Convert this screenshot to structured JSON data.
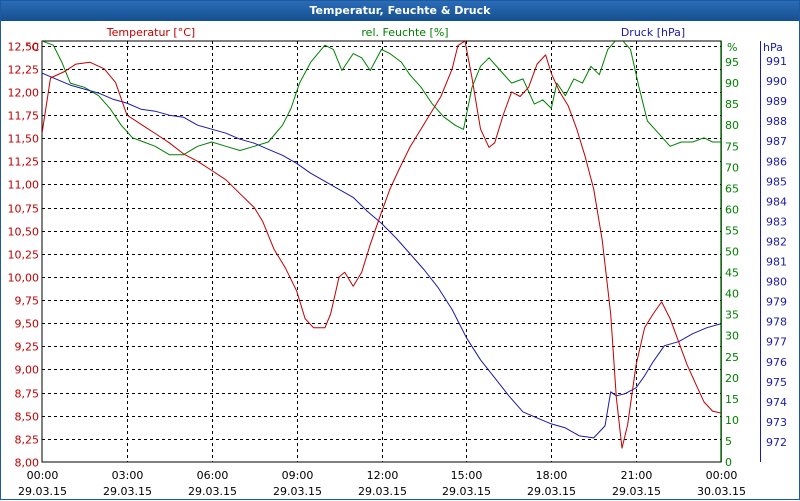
{
  "window": {
    "title": "Temperatur, Feuchte & Druck"
  },
  "chart_data": {
    "type": "line",
    "title": "Temperatur, Feuchte & Druck",
    "x_labels": [
      {
        "time": "00:00",
        "date": "29.03.15"
      },
      {
        "time": "03:00",
        "date": "29.03.15"
      },
      {
        "time": "06:00",
        "date": "29.03.15"
      },
      {
        "time": "09:00",
        "date": "29.03.15"
      },
      {
        "time": "12:00",
        "date": "29.03.15"
      },
      {
        "time": "15:00",
        "date": "29.03.15"
      },
      {
        "time": "18:00",
        "date": "29.03.15"
      },
      {
        "time": "21:00",
        "date": "29.03.15"
      },
      {
        "time": "00:00",
        "date": "30.03.15"
      }
    ],
    "xlim_hours": [
      0,
      24
    ],
    "axes": {
      "temperature": {
        "label": "Temperatur [°C]",
        "unit": "°C",
        "min": 8.0,
        "max": 12.5,
        "step": 0.25,
        "color": "#c00000",
        "ticks": [
          "8,00",
          "8,25",
          "8,50",
          "8,75",
          "9,00",
          "9,25",
          "9,50",
          "9,75",
          "10,00",
          "10,25",
          "10,50",
          "10,75",
          "11,00",
          "11,25",
          "11,50",
          "11,75",
          "12,00",
          "12,25",
          "12,50"
        ]
      },
      "humidity": {
        "label": "rel. Feuchte [%]",
        "unit": "%",
        "min": 0,
        "max": 95,
        "step": 5,
        "color": "#008000",
        "ticks": [
          "0",
          "5",
          "10",
          "15",
          "20",
          "25",
          "30",
          "35",
          "40",
          "45",
          "50",
          "55",
          "60",
          "65",
          "70",
          "75",
          "80",
          "85",
          "90",
          "95"
        ]
      },
      "pressure": {
        "label": "Druck [hPa]",
        "unit": "hPa",
        "min": 971,
        "max": 991,
        "step": 1,
        "color": "#1a1aa6",
        "ticks": [
          "972",
          "973",
          "974",
          "975",
          "976",
          "977",
          "978",
          "979",
          "980",
          "981",
          "982",
          "983",
          "984",
          "985",
          "986",
          "987",
          "988",
          "989",
          "990",
          "991"
        ]
      }
    },
    "series": [
      {
        "name": "Temperatur [°C]",
        "axis": "temperature",
        "color": "#c00000",
        "points": [
          [
            0,
            11.55
          ],
          [
            0.3,
            12.15
          ],
          [
            0.8,
            12.22
          ],
          [
            1.2,
            12.3
          ],
          [
            1.7,
            12.32
          ],
          [
            2.2,
            12.25
          ],
          [
            2.6,
            12.1
          ],
          [
            3,
            11.75
          ],
          [
            3.5,
            11.65
          ],
          [
            4,
            11.55
          ],
          [
            4.5,
            11.45
          ],
          [
            5,
            11.33
          ],
          [
            5.5,
            11.25
          ],
          [
            6,
            11.15
          ],
          [
            6.5,
            11.05
          ],
          [
            7,
            10.9
          ],
          [
            7.5,
            10.75
          ],
          [
            7.8,
            10.6
          ],
          [
            8.2,
            10.3
          ],
          [
            8.6,
            10.1
          ],
          [
            9,
            9.85
          ],
          [
            9.3,
            9.55
          ],
          [
            9.6,
            9.45
          ],
          [
            10,
            9.45
          ],
          [
            10.2,
            9.6
          ],
          [
            10.5,
            10.0
          ],
          [
            10.7,
            10.05
          ],
          [
            11,
            9.9
          ],
          [
            11.3,
            10.05
          ],
          [
            11.6,
            10.35
          ],
          [
            12,
            10.7
          ],
          [
            12.3,
            10.95
          ],
          [
            12.6,
            11.15
          ],
          [
            13,
            11.4
          ],
          [
            13.4,
            11.6
          ],
          [
            13.8,
            11.8
          ],
          [
            14.1,
            11.95
          ],
          [
            14.5,
            12.25
          ],
          [
            14.7,
            12.5
          ],
          [
            14.95,
            12.55
          ],
          [
            15.2,
            12.15
          ],
          [
            15.5,
            11.6
          ],
          [
            15.8,
            11.4
          ],
          [
            16,
            11.45
          ],
          [
            16.3,
            11.75
          ],
          [
            16.6,
            12.0
          ],
          [
            16.9,
            11.95
          ],
          [
            17.2,
            12.05
          ],
          [
            17.5,
            12.3
          ],
          [
            17.8,
            12.4
          ],
          [
            18,
            12.2
          ],
          [
            18.3,
            12.0
          ],
          [
            18.6,
            11.85
          ],
          [
            18.9,
            11.6
          ],
          [
            19.2,
            11.3
          ],
          [
            19.5,
            10.95
          ],
          [
            19.8,
            10.4
          ],
          [
            20.1,
            9.6
          ],
          [
            20.3,
            8.7
          ],
          [
            20.5,
            8.15
          ],
          [
            20.7,
            8.4
          ],
          [
            21,
            9.05
          ],
          [
            21.3,
            9.45
          ],
          [
            21.6,
            9.6
          ],
          [
            21.9,
            9.73
          ],
          [
            22.2,
            9.55
          ],
          [
            22.5,
            9.3
          ],
          [
            22.8,
            9.05
          ],
          [
            23.1,
            8.85
          ],
          [
            23.4,
            8.65
          ],
          [
            23.7,
            8.55
          ],
          [
            24,
            8.53
          ]
        ]
      },
      {
        "name": "rel. Feuchte [%]",
        "axis": "humidity",
        "color": "#008000",
        "points": [
          [
            0,
            100
          ],
          [
            0.4,
            99
          ],
          [
            0.7,
            95
          ],
          [
            1,
            90
          ],
          [
            1.5,
            89
          ],
          [
            2,
            87
          ],
          [
            2.4,
            84
          ],
          [
            2.8,
            80
          ],
          [
            3.2,
            77
          ],
          [
            3.6,
            76
          ],
          [
            4,
            75
          ],
          [
            4.5,
            73
          ],
          [
            5,
            73
          ],
          [
            5.5,
            75
          ],
          [
            6,
            76
          ],
          [
            6.5,
            75
          ],
          [
            7,
            74
          ],
          [
            7.5,
            75
          ],
          [
            8,
            76
          ],
          [
            8.5,
            80
          ],
          [
            8.8,
            84
          ],
          [
            9.1,
            90
          ],
          [
            9.5,
            95
          ],
          [
            10,
            99
          ],
          [
            10.3,
            98
          ],
          [
            10.6,
            93
          ],
          [
            11,
            97
          ],
          [
            11.3,
            96
          ],
          [
            11.6,
            93
          ],
          [
            12,
            98
          ],
          [
            12.3,
            97
          ],
          [
            12.7,
            95
          ],
          [
            13,
            92
          ],
          [
            13.4,
            89
          ],
          [
            13.8,
            85
          ],
          [
            14.2,
            82
          ],
          [
            14.6,
            80
          ],
          [
            14.9,
            79
          ],
          [
            15.2,
            89
          ],
          [
            15.5,
            94
          ],
          [
            15.8,
            96
          ],
          [
            16.2,
            93
          ],
          [
            16.6,
            90
          ],
          [
            17,
            91
          ],
          [
            17.4,
            85
          ],
          [
            17.7,
            86
          ],
          [
            18,
            84
          ],
          [
            18.2,
            90
          ],
          [
            18.5,
            87
          ],
          [
            18.8,
            91
          ],
          [
            19.1,
            90
          ],
          [
            19.4,
            94
          ],
          [
            19.7,
            92
          ],
          [
            20,
            98
          ],
          [
            20.4,
            101
          ],
          [
            20.8,
            98
          ],
          [
            21.1,
            89
          ],
          [
            21.4,
            81
          ],
          [
            21.8,
            78
          ],
          [
            22.2,
            75
          ],
          [
            22.6,
            76
          ],
          [
            23,
            76
          ],
          [
            23.4,
            77
          ],
          [
            23.7,
            76
          ],
          [
            24,
            76
          ]
        ]
      },
      {
        "name": "Druck [hPa]",
        "axis": "pressure",
        "color": "#1a1aa6",
        "points": [
          [
            0,
            990.4
          ],
          [
            0.5,
            990.1
          ],
          [
            1,
            989.8
          ],
          [
            1.5,
            989.6
          ],
          [
            2,
            989.4
          ],
          [
            2.5,
            989.1
          ],
          [
            3,
            988.9
          ],
          [
            3.5,
            988.6
          ],
          [
            4,
            988.5
          ],
          [
            4.5,
            988.3
          ],
          [
            5,
            988.2
          ],
          [
            5.5,
            987.8
          ],
          [
            6,
            987.6
          ],
          [
            6.5,
            987.4
          ],
          [
            7,
            987.1
          ],
          [
            7.5,
            986.9
          ],
          [
            8,
            986.6
          ],
          [
            8.5,
            986.3
          ],
          [
            9,
            985.9
          ],
          [
            9.5,
            985.4
          ],
          [
            10,
            985.0
          ],
          [
            10.5,
            984.6
          ],
          [
            11,
            984.2
          ],
          [
            11.5,
            983.5
          ],
          [
            12,
            982.9
          ],
          [
            12.5,
            982.2
          ],
          [
            13,
            981.4
          ],
          [
            13.5,
            980.6
          ],
          [
            14,
            979.7
          ],
          [
            14.5,
            978.6
          ],
          [
            15,
            977.2
          ],
          [
            15.5,
            976.1
          ],
          [
            16,
            975.2
          ],
          [
            16.5,
            974.3
          ],
          [
            17,
            973.5
          ],
          [
            17.5,
            973.2
          ],
          [
            18,
            972.9
          ],
          [
            18.5,
            972.7
          ],
          [
            19,
            972.3
          ],
          [
            19.5,
            972.2
          ],
          [
            19.9,
            972.8
          ],
          [
            20.1,
            974.5
          ],
          [
            20.3,
            974.3
          ],
          [
            20.6,
            974.4
          ],
          [
            21,
            974.7
          ],
          [
            21.3,
            975.3
          ],
          [
            21.6,
            976.0
          ],
          [
            22,
            976.8
          ],
          [
            22.5,
            977.0
          ],
          [
            23,
            977.4
          ],
          [
            23.5,
            977.7
          ],
          [
            24,
            977.9
          ]
        ]
      }
    ]
  }
}
